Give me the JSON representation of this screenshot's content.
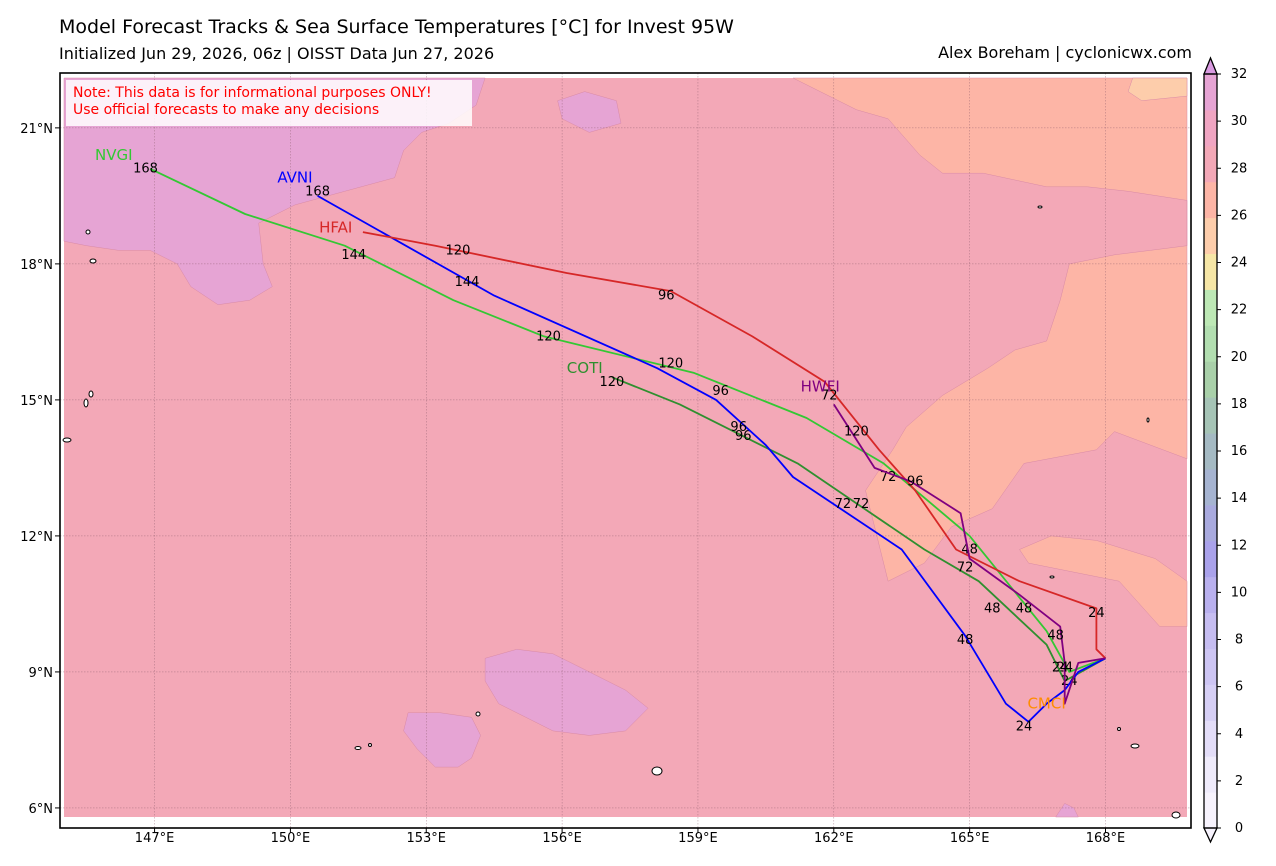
{
  "header": {
    "title": "Model Forecast Tracks & Sea Surface Temperatures [°C] for Invest 95W",
    "subtitle": "Initialized Jun 29, 2026, 06z | OISST Data Jun 27, 2026",
    "credit": "Alex Boreham | cyclonicwx.com"
  },
  "note": {
    "line1": "Note: This data is for informational purposes ONLY!",
    "line2": "Use official forecasts to make any decisions"
  },
  "map": {
    "lon_range": [
      145.0,
      169.8
    ],
    "lat_range": [
      5.8,
      22.1
    ],
    "lon_ticks": [
      147,
      150,
      153,
      156,
      159,
      162,
      165,
      168
    ],
    "lon_tick_labels": [
      "147°E",
      "150°E",
      "153°E",
      "156°E",
      "159°E",
      "162°E",
      "165°E",
      "168°E"
    ],
    "lat_ticks": [
      6,
      9,
      12,
      15,
      18,
      21
    ],
    "lat_tick_labels": [
      "6°N",
      "9°N",
      "12°N",
      "15°N",
      "18°N",
      "21°N"
    ],
    "grid": true,
    "land_color": "#ffffff",
    "coast_color": "#000000"
  },
  "sst": {
    "background_level": 29,
    "regions": [
      {
        "level": 28.5,
        "color": "#fdb5a6",
        "points": [
          [
            161.1,
            22.1
          ],
          [
            169.8,
            22.1
          ],
          [
            169.8,
            13.7
          ],
          [
            168.2,
            14.3
          ],
          [
            167.8,
            13.9
          ],
          [
            166.2,
            13.6
          ],
          [
            165.5,
            12.6
          ],
          [
            164.6,
            12.2
          ],
          [
            164.0,
            11.4
          ],
          [
            163.2,
            11.0
          ],
          [
            162.9,
            12.2
          ],
          [
            162.7,
            13.0
          ],
          [
            163.3,
            13.9
          ],
          [
            163.6,
            14.4
          ],
          [
            164.4,
            15.1
          ],
          [
            165.4,
            15.7
          ],
          [
            166.0,
            16.1
          ],
          [
            166.7,
            16.3
          ],
          [
            167.0,
            17.2
          ],
          [
            167.2,
            18.0
          ],
          [
            168.2,
            18.2
          ],
          [
            169.0,
            18.3
          ],
          [
            169.8,
            18.4
          ],
          [
            169.8,
            19.4
          ],
          [
            168.5,
            19.6
          ],
          [
            167.6,
            19.7
          ],
          [
            166.7,
            19.7
          ],
          [
            165.3,
            20.0
          ],
          [
            164.4,
            20.0
          ],
          [
            163.9,
            20.4
          ],
          [
            163.2,
            21.2
          ],
          [
            162.5,
            21.4
          ],
          [
            161.7,
            21.8
          ]
        ]
      },
      {
        "level": 28.5,
        "color": "#fdb5a6",
        "points": [
          [
            166.3,
            11.4
          ],
          [
            168.3,
            11.0
          ],
          [
            169.2,
            10.0
          ],
          [
            169.8,
            10.0
          ],
          [
            169.8,
            11.0
          ],
          [
            169.1,
            11.5
          ],
          [
            167.8,
            11.9
          ],
          [
            166.8,
            12.0
          ],
          [
            166.1,
            11.7
          ]
        ]
      },
      {
        "level": 27.5,
        "color": "#fdcdab",
        "points": [
          [
            168.6,
            22.1
          ],
          [
            169.8,
            22.1
          ],
          [
            169.8,
            21.7
          ],
          [
            168.8,
            21.6
          ],
          [
            168.5,
            21.8
          ]
        ]
      },
      {
        "level": 30.5,
        "color": "#e6a4d4",
        "points": [
          [
            145.0,
            22.1
          ],
          [
            154.3,
            22.1
          ],
          [
            154.1,
            21.5
          ],
          [
            153.5,
            21.1
          ],
          [
            152.9,
            20.9
          ],
          [
            152.5,
            20.5
          ],
          [
            152.3,
            19.9
          ],
          [
            151.2,
            19.6
          ],
          [
            150.1,
            19.3
          ],
          [
            149.3,
            18.9
          ],
          [
            149.4,
            18.0
          ],
          [
            149.6,
            17.5
          ],
          [
            149.1,
            17.2
          ],
          [
            148.4,
            17.1
          ],
          [
            147.8,
            17.5
          ],
          [
            147.5,
            18.0
          ],
          [
            146.9,
            18.3
          ],
          [
            146.2,
            18.3
          ],
          [
            145.5,
            18.4
          ],
          [
            145.0,
            18.5
          ]
        ]
      },
      {
        "level": 30.5,
        "color": "#e6a4d4",
        "points": [
          [
            155.9,
            21.6
          ],
          [
            156.5,
            21.8
          ],
          [
            157.2,
            21.6
          ],
          [
            157.3,
            21.1
          ],
          [
            156.6,
            20.9
          ],
          [
            156.0,
            21.2
          ]
        ]
      },
      {
        "level": 30.5,
        "color": "#e6a4d4",
        "points": [
          [
            154.3,
            9.3
          ],
          [
            155.0,
            9.5
          ],
          [
            155.8,
            9.4
          ],
          [
            156.6,
            9.0
          ],
          [
            157.4,
            8.6
          ],
          [
            157.9,
            8.2
          ],
          [
            157.4,
            7.7
          ],
          [
            156.6,
            7.6
          ],
          [
            155.8,
            7.7
          ],
          [
            155.2,
            8.0
          ],
          [
            154.6,
            8.3
          ],
          [
            154.3,
            8.8
          ]
        ]
      },
      {
        "level": 30.5,
        "color": "#e6a4d4",
        "points": [
          [
            152.6,
            8.1
          ],
          [
            153.3,
            8.1
          ],
          [
            154.0,
            8.0
          ],
          [
            154.2,
            7.6
          ],
          [
            154.0,
            7.1
          ],
          [
            153.7,
            6.9
          ],
          [
            153.2,
            6.9
          ],
          [
            152.8,
            7.3
          ],
          [
            152.5,
            7.7
          ]
        ]
      },
      {
        "level": 30.5,
        "color": "#e6a4d4",
        "points": [
          [
            166.9,
            5.8
          ],
          [
            167.1,
            6.1
          ],
          [
            167.3,
            6.0
          ],
          [
            167.4,
            5.8
          ]
        ]
      }
    ]
  },
  "colorbar": {
    "vmin": 0,
    "vmax": 32,
    "tick_labels": [
      "0",
      "2",
      "4",
      "6",
      "8",
      "10",
      "12",
      "14",
      "16",
      "18",
      "20",
      "22",
      "24",
      "26",
      "28",
      "30",
      "32"
    ],
    "colors": [
      "#f7f3fd",
      "#efebfb",
      "#e3ddf8",
      "#d6cff5",
      "#cdc5f3",
      "#c6bdf1",
      "#b9b0ee",
      "#aaa2eb",
      "#a9aade",
      "#a6b4d1",
      "#a5bac3",
      "#a6c4b6",
      "#a9d0a9",
      "#b2deb0",
      "#bde8b5",
      "#f6e6a6",
      "#fdcdab",
      "#fdb5a6",
      "#f3a8b7",
      "#f0a5c2",
      "#e6a4d4"
    ],
    "extend_min_color": "#f7f3fd",
    "extend_max_color": "#da9be1"
  },
  "tracks": [
    {
      "name": "NVGI",
      "color": "#33c833",
      "label": {
        "text": "NVGI",
        "lon": 146.1,
        "lat": 20.4
      },
      "points": [
        [
          168.0,
          9.3
        ],
        [
          167.2,
          9.0
        ],
        [
          166.7,
          9.9
        ],
        [
          165.0,
          12.0
        ],
        [
          163.1,
          13.6
        ],
        [
          161.4,
          14.6
        ],
        [
          158.9,
          15.6
        ],
        [
          155.6,
          16.4
        ],
        [
          153.6,
          17.2
        ],
        [
          151.2,
          18.4
        ],
        [
          149.0,
          19.1
        ],
        [
          146.9,
          20.1
        ]
      ],
      "times": [
        {
          "text": "24",
          "lon": 167.1,
          "lat": 9.1
        },
        {
          "text": "48",
          "lon": 166.2,
          "lat": 10.4
        },
        {
          "text": "72",
          "lon": 163.2,
          "lat": 13.3
        },
        {
          "text": "96",
          "lon": 159.5,
          "lat": 15.2
        },
        {
          "text": "120",
          "lon": 155.7,
          "lat": 16.4
        },
        {
          "text": "144",
          "lon": 151.4,
          "lat": 18.2
        },
        {
          "text": "168",
          "lon": 146.8,
          "lat": 20.1
        }
      ]
    },
    {
      "name": "COTI",
      "color": "#2f8f2f",
      "label": {
        "text": "COTI",
        "lon": 156.5,
        "lat": 15.7
      },
      "points": [
        [
          168.0,
          9.3
        ],
        [
          167.1,
          8.8
        ],
        [
          166.7,
          9.6
        ],
        [
          165.2,
          11.0
        ],
        [
          164.0,
          11.7
        ],
        [
          161.2,
          13.6
        ],
        [
          158.6,
          14.9
        ],
        [
          157.1,
          15.5
        ]
      ],
      "times": [
        {
          "text": "24",
          "lon": 167.2,
          "lat": 8.8
        },
        {
          "text": "48",
          "lon": 165.5,
          "lat": 10.4
        },
        {
          "text": "72",
          "lon": 162.6,
          "lat": 12.7
        },
        {
          "text": "96",
          "lon": 160.0,
          "lat": 14.2
        },
        {
          "text": "120",
          "lon": 157.1,
          "lat": 15.4
        }
      ]
    },
    {
      "name": "AVNI",
      "color": "#0000ff",
      "label": {
        "text": "AVNI",
        "lon": 150.1,
        "lat": 19.9
      },
      "points": [
        [
          168.0,
          9.3
        ],
        [
          167.4,
          9.0
        ],
        [
          167.1,
          8.6
        ],
        [
          166.7,
          8.3
        ],
        [
          166.3,
          7.9
        ],
        [
          165.8,
          8.3
        ],
        [
          164.9,
          9.8
        ],
        [
          163.5,
          11.7
        ],
        [
          161.1,
          13.3
        ],
        [
          160.5,
          14.0
        ],
        [
          159.4,
          15.0
        ],
        [
          158.1,
          15.7
        ],
        [
          154.5,
          17.3
        ],
        [
          150.6,
          19.5
        ]
      ],
      "times": [
        {
          "text": "24",
          "lon": 166.2,
          "lat": 7.8
        },
        {
          "text": "48",
          "lon": 164.9,
          "lat": 9.7
        },
        {
          "text": "72",
          "lon": 162.2,
          "lat": 12.7
        },
        {
          "text": "96",
          "lon": 159.9,
          "lat": 14.4
        },
        {
          "text": "120",
          "lon": 158.4,
          "lat": 15.8
        },
        {
          "text": "144",
          "lon": 153.9,
          "lat": 17.6
        },
        {
          "text": "168",
          "lon": 150.6,
          "lat": 19.6
        }
      ]
    },
    {
      "name": "HFAI",
      "color": "#d62727",
      "label": {
        "text": "HFAI",
        "lon": 151.0,
        "lat": 18.8
      },
      "points": [
        [
          168.0,
          9.3
        ],
        [
          167.8,
          9.5
        ],
        [
          167.8,
          10.4
        ],
        [
          166.1,
          11.0
        ],
        [
          164.7,
          11.7
        ],
        [
          163.8,
          13.0
        ],
        [
          163.0,
          13.9
        ],
        [
          161.8,
          15.4
        ],
        [
          160.2,
          16.4
        ],
        [
          158.4,
          17.4
        ],
        [
          156.1,
          17.8
        ],
        [
          153.2,
          18.4
        ],
        [
          151.6,
          18.7
        ]
      ],
      "times": [
        {
          "text": "24",
          "lon": 167.8,
          "lat": 10.3
        },
        {
          "text": "48",
          "lon": 165.0,
          "lat": 11.7
        },
        {
          "text": "72",
          "lon": 161.9,
          "lat": 15.1
        },
        {
          "text": "96",
          "lon": 158.3,
          "lat": 17.3
        },
        {
          "text": "120",
          "lon": 153.7,
          "lat": 18.3
        }
      ]
    },
    {
      "name": "HWFI",
      "color": "#800080",
      "label": {
        "text": "HWFI",
        "lon": 161.7,
        "lat": 15.3
      },
      "points": [
        [
          168.0,
          9.3
        ],
        [
          167.4,
          9.2
        ],
        [
          167.1,
          8.3
        ],
        [
          167.1,
          9.2
        ],
        [
          167.0,
          10.0
        ],
        [
          166.1,
          10.7
        ],
        [
          165.0,
          11.5
        ],
        [
          164.8,
          12.5
        ],
        [
          163.7,
          13.2
        ],
        [
          162.9,
          13.5
        ],
        [
          162.0,
          14.9
        ]
      ],
      "times": [
        {
          "text": "24",
          "lon": 167.0,
          "lat": 9.1
        },
        {
          "text": "48",
          "lon": 166.9,
          "lat": 9.8
        },
        {
          "text": "72",
          "lon": 164.9,
          "lat": 11.3
        },
        {
          "text": "96",
          "lon": 163.8,
          "lat": 13.2
        },
        {
          "text": "120",
          "lon": 162.5,
          "lat": 14.3
        }
      ]
    },
    {
      "name": "CMCI",
      "color": "#ff8c00",
      "label": {
        "text": "CMCI",
        "lon": 166.7,
        "lat": 8.3
      },
      "points": [],
      "times": []
    }
  ]
}
